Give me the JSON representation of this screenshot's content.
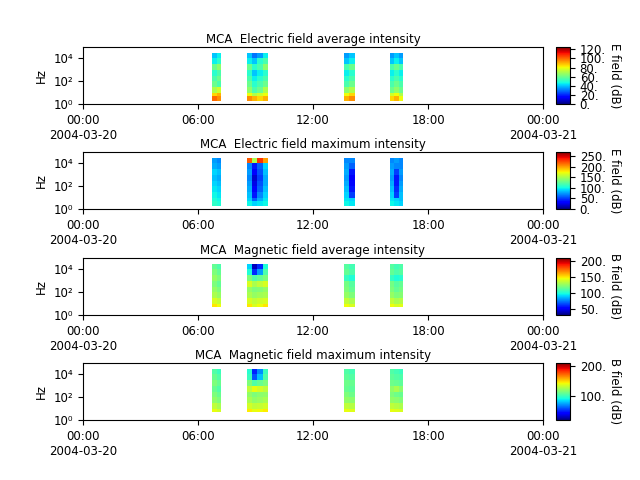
{
  "chart_data": [
    {
      "type": "heatmap",
      "title": "MCA  Electric field average intensity",
      "y_label": "Hz",
      "colorbar_label": "E field (dB)",
      "log": "y",
      "xlim": [
        0,
        24
      ],
      "xticks": [
        {
          "value": 0,
          "label": "00:00\n2004-03-20"
        },
        {
          "value": 6,
          "label": "06:00"
        },
        {
          "value": 12,
          "label": "12:00"
        },
        {
          "value": 18,
          "label": "18:00"
        },
        {
          "value": 24,
          "label": "00:00\n2004-03-21"
        }
      ],
      "ylim": [
        1,
        100000
      ],
      "yticks": [
        {
          "value": 1,
          "label": "10⁰"
        },
        {
          "value": 100,
          "label": "10²"
        },
        {
          "value": 10000,
          "label": "10⁴"
        }
      ],
      "color_range": [
        0,
        125
      ],
      "color_ticks": [
        {
          "value": 0,
          "label": "0."
        },
        {
          "value": 20,
          "label": "20."
        },
        {
          "value": 40,
          "label": "40."
        },
        {
          "value": 60,
          "label": "60."
        },
        {
          "value": 80,
          "label": "80."
        },
        {
          "value": 100,
          "label": "100."
        },
        {
          "value": 120,
          "label": "120."
        }
      ],
      "freq_edges": [
        2,
        5,
        10,
        30,
        100,
        300,
        1000,
        3000,
        10000,
        30000
      ],
      "segments": [
        {
          "time_edges": [
            6.75,
            6.98,
            7.2
          ],
          "cells": [
            [
              100,
              95
            ],
            [
              85,
              90
            ],
            [
              70,
              75
            ],
            [
              60,
              55
            ],
            [
              55,
              60
            ],
            [
              50,
              55
            ],
            [
              60,
              65
            ],
            [
              45,
              50
            ],
            [
              40,
              45
            ]
          ]
        },
        {
          "time_edges": [
            8.55,
            8.83,
            9.1,
            9.38,
            9.65
          ],
          "cells": [
            [
              95,
              90,
              85,
              90
            ],
            [
              80,
              70,
              75,
              80
            ],
            [
              65,
              55,
              60,
              70
            ],
            [
              60,
              50,
              55,
              60
            ],
            [
              55,
              45,
              50,
              55
            ],
            [
              50,
              40,
              45,
              50
            ],
            [
              60,
              50,
              55,
              65
            ],
            [
              45,
              40,
              50,
              55
            ],
            [
              40,
              30,
              35,
              45
            ]
          ]
        },
        {
          "time_edges": [
            13.6,
            13.9,
            14.2
          ],
          "cells": [
            [
              90,
              95
            ],
            [
              80,
              85
            ],
            [
              65,
              70
            ],
            [
              55,
              60
            ],
            [
              50,
              55
            ],
            [
              45,
              50
            ],
            [
              55,
              60
            ],
            [
              40,
              45
            ],
            [
              35,
              40
            ]
          ]
        },
        {
          "time_edges": [
            16.0,
            16.23,
            16.47,
            16.7
          ],
          "cells": [
            [
              85,
              90,
              80
            ],
            [
              75,
              80,
              70
            ],
            [
              60,
              65,
              60
            ],
            [
              55,
              60,
              55
            ],
            [
              50,
              55,
              50
            ],
            [
              45,
              50,
              45
            ],
            [
              55,
              60,
              55
            ],
            [
              40,
              45,
              40
            ],
            [
              35,
              40,
              35
            ]
          ]
        }
      ]
    },
    {
      "type": "heatmap",
      "title": "MCA  Electric field maximum intensity",
      "y_label": "Hz",
      "colorbar_label": "E field (dB)",
      "log": "y",
      "xlim": [
        0,
        24
      ],
      "xticks": [
        {
          "value": 0,
          "label": "00:00\n2004-03-20"
        },
        {
          "value": 6,
          "label": "06:00"
        },
        {
          "value": 12,
          "label": "12:00"
        },
        {
          "value": 18,
          "label": "18:00"
        },
        {
          "value": 24,
          "label": "00:00\n2004-03-21"
        }
      ],
      "ylim": [
        1,
        100000
      ],
      "yticks": [
        {
          "value": 1,
          "label": "10⁰"
        },
        {
          "value": 100,
          "label": "10²"
        },
        {
          "value": 10000,
          "label": "10⁴"
        }
      ],
      "color_range": [
        0,
        270
      ],
      "color_ticks": [
        {
          "value": 0,
          "label": "0."
        },
        {
          "value": 50,
          "label": "50."
        },
        {
          "value": 100,
          "label": "100."
        },
        {
          "value": 150,
          "label": "150."
        },
        {
          "value": 200,
          "label": "200."
        },
        {
          "value": 250,
          "label": "250."
        }
      ],
      "freq_edges": [
        2,
        5,
        10,
        30,
        100,
        300,
        1000,
        3000,
        10000,
        30000
      ],
      "segments": [
        {
          "time_edges": [
            6.75,
            6.98,
            7.2
          ],
          "cells": [
            [
              110,
              105
            ],
            [
              105,
              100
            ],
            [
              100,
              95
            ],
            [
              95,
              90
            ],
            [
              90,
              85
            ],
            [
              85,
              80
            ],
            [
              90,
              85
            ],
            [
              80,
              75
            ],
            [
              75,
              70
            ]
          ]
        },
        {
          "time_edges": [
            8.55,
            8.83,
            9.1,
            9.38,
            9.65
          ],
          "cells": [
            [
              100,
              90,
              95,
              100
            ],
            [
              90,
              60,
              80,
              95
            ],
            [
              85,
              40,
              70,
              90
            ],
            [
              80,
              30,
              60,
              85
            ],
            [
              75,
              25,
              55,
              80
            ],
            [
              70,
              20,
              50,
              80
            ],
            [
              75,
              30,
              55,
              85
            ],
            [
              70,
              40,
              60,
              90
            ],
            [
              220,
              150,
              230,
              200
            ]
          ]
        },
        {
          "time_edges": [
            13.6,
            13.9,
            14.2
          ],
          "cells": [
            [
              100,
              95
            ],
            [
              95,
              90
            ],
            [
              90,
              50
            ],
            [
              85,
              40
            ],
            [
              80,
              35
            ],
            [
              75,
              30
            ],
            [
              80,
              40
            ],
            [
              75,
              60
            ],
            [
              70,
              70
            ]
          ]
        },
        {
          "time_edges": [
            16.0,
            16.23,
            16.47,
            16.7
          ],
          "cells": [
            [
              100,
              95,
              90
            ],
            [
              95,
              90,
              85
            ],
            [
              90,
              50,
              85
            ],
            [
              85,
              45,
              80
            ],
            [
              80,
              40,
              75
            ],
            [
              75,
              40,
              70
            ],
            [
              80,
              50,
              75
            ],
            [
              75,
              70,
              70
            ],
            [
              70,
              75,
              70
            ]
          ]
        }
      ]
    },
    {
      "type": "heatmap",
      "title": "MCA  Magnetic field average intensity",
      "y_label": "Hz",
      "colorbar_label": "B field (dB)",
      "log": "y",
      "xlim": [
        0,
        24
      ],
      "xticks": [
        {
          "value": 0,
          "label": "00:00\n2004-03-20"
        },
        {
          "value": 6,
          "label": "06:00"
        },
        {
          "value": 12,
          "label": "12:00"
        },
        {
          "value": 18,
          "label": "18:00"
        },
        {
          "value": 24,
          "label": "00:00\n2004-03-21"
        }
      ],
      "ylim": [
        1,
        100000
      ],
      "yticks": [
        {
          "value": 1,
          "label": "10⁰"
        },
        {
          "value": 100,
          "label": "10²"
        },
        {
          "value": 10000,
          "label": "10⁴"
        }
      ],
      "color_range": [
        30,
        210
      ],
      "color_ticks": [
        {
          "value": 50,
          "label": "50."
        },
        {
          "value": 100,
          "label": "100."
        },
        {
          "value": 150,
          "label": "150."
        },
        {
          "value": 200,
          "label": "200."
        }
      ],
      "freq_edges": [
        5,
        10,
        30,
        100,
        300,
        1000,
        3000,
        10000,
        30000
      ],
      "segments": [
        {
          "time_edges": [
            6.75,
            6.98,
            7.2
          ],
          "cells": [
            [
              150,
              145
            ],
            [
              140,
              135
            ],
            [
              130,
              125
            ],
            [
              125,
              120
            ],
            [
              120,
              115
            ],
            [
              125,
              120
            ],
            [
              120,
              115
            ],
            [
              115,
              110
            ]
          ]
        },
        {
          "time_edges": [
            8.55,
            8.83,
            9.1,
            9.38,
            9.65
          ],
          "cells": [
            [
              150,
              140,
              145,
              150
            ],
            [
              140,
              135,
              138,
              140
            ],
            [
              130,
              125,
              128,
              130
            ],
            [
              125,
              120,
              122,
              125
            ],
            [
              140,
              130,
              135,
              140
            ],
            [
              120,
              110,
              115,
              120
            ],
            [
              100,
              60,
              80,
              110
            ],
            [
              90,
              40,
              60,
              100
            ]
          ]
        },
        {
          "time_edges": [
            13.6,
            13.9,
            14.2
          ],
          "cells": [
            [
              145,
              140
            ],
            [
              135,
              130
            ],
            [
              125,
              120
            ],
            [
              120,
              115
            ],
            [
              118,
              112
            ],
            [
              105,
              100
            ],
            [
              115,
              110
            ],
            [
              112,
              108
            ]
          ]
        },
        {
          "time_edges": [
            16.0,
            16.23,
            16.47,
            16.7
          ],
          "cells": [
            [
              145,
              140,
              142
            ],
            [
              135,
              130,
              132
            ],
            [
              125,
              120,
              122
            ],
            [
              120,
              115,
              118
            ],
            [
              118,
              112,
              115
            ],
            [
              105,
              100,
              102
            ],
            [
              115,
              110,
              112
            ],
            [
              112,
              108,
              110
            ]
          ]
        }
      ]
    },
    {
      "type": "heatmap",
      "title": "MCA  Magnetic field maximum intensity",
      "y_label": "Hz",
      "colorbar_label": "B field (dB)",
      "log": "y",
      "xlim": [
        0,
        24
      ],
      "xticks": [
        {
          "value": 0,
          "label": "00:00\n2004-03-20"
        },
        {
          "value": 6,
          "label": "06:00"
        },
        {
          "value": 12,
          "label": "12:00"
        },
        {
          "value": 18,
          "label": "18:00"
        },
        {
          "value": 24,
          "label": "00:00\n2004-03-21"
        }
      ],
      "ylim": [
        1,
        100000
      ],
      "yticks": [
        {
          "value": 1,
          "label": "10⁰"
        },
        {
          "value": 100,
          "label": "10²"
        },
        {
          "value": 10000,
          "label": "10⁴"
        }
      ],
      "color_range": [
        20,
        210
      ],
      "color_ticks": [
        {
          "value": 100,
          "label": "100."
        },
        {
          "value": 200,
          "label": "200."
        }
      ],
      "freq_edges": [
        5,
        10,
        30,
        100,
        300,
        1000,
        3000,
        10000,
        30000
      ],
      "segments": [
        {
          "time_edges": [
            6.75,
            6.98,
            7.2
          ],
          "cells": [
            [
              140,
              135
            ],
            [
              130,
              125
            ],
            [
              120,
              115
            ],
            [
              115,
              110
            ],
            [
              110,
              105
            ],
            [
              115,
              110
            ],
            [
              110,
              105
            ],
            [
              105,
              100
            ]
          ]
        },
        {
          "time_edges": [
            8.55,
            8.83,
            9.1,
            9.38,
            9.65
          ],
          "cells": [
            [
              145,
              140,
              142,
              145
            ],
            [
              135,
              130,
              132,
              135
            ],
            [
              125,
              120,
              122,
              125
            ],
            [
              120,
              115,
              118,
              120
            ],
            [
              130,
              140,
              135,
              130
            ],
            [
              115,
              105,
              110,
              115
            ],
            [
              100,
              60,
              80,
              105
            ],
            [
              95,
              50,
              70,
              100
            ]
          ]
        },
        {
          "time_edges": [
            13.6,
            13.9,
            14.2
          ],
          "cells": [
            [
              140,
              138
            ],
            [
              130,
              128
            ],
            [
              120,
              118
            ],
            [
              115,
              112
            ],
            [
              110,
              108
            ],
            [
              112,
              110
            ],
            [
              108,
              106
            ],
            [
              105,
              102
            ]
          ]
        },
        {
          "time_edges": [
            16.0,
            16.23,
            16.47,
            16.7
          ],
          "cells": [
            [
              140,
              138,
              136
            ],
            [
              130,
              128,
              126
            ],
            [
              120,
              118,
              116
            ],
            [
              115,
              112,
              110
            ],
            [
              120,
              125,
              118
            ],
            [
              112,
              110,
              108
            ],
            [
              108,
              106,
              104
            ],
            [
              105,
              102,
              100
            ]
          ]
        }
      ]
    }
  ]
}
